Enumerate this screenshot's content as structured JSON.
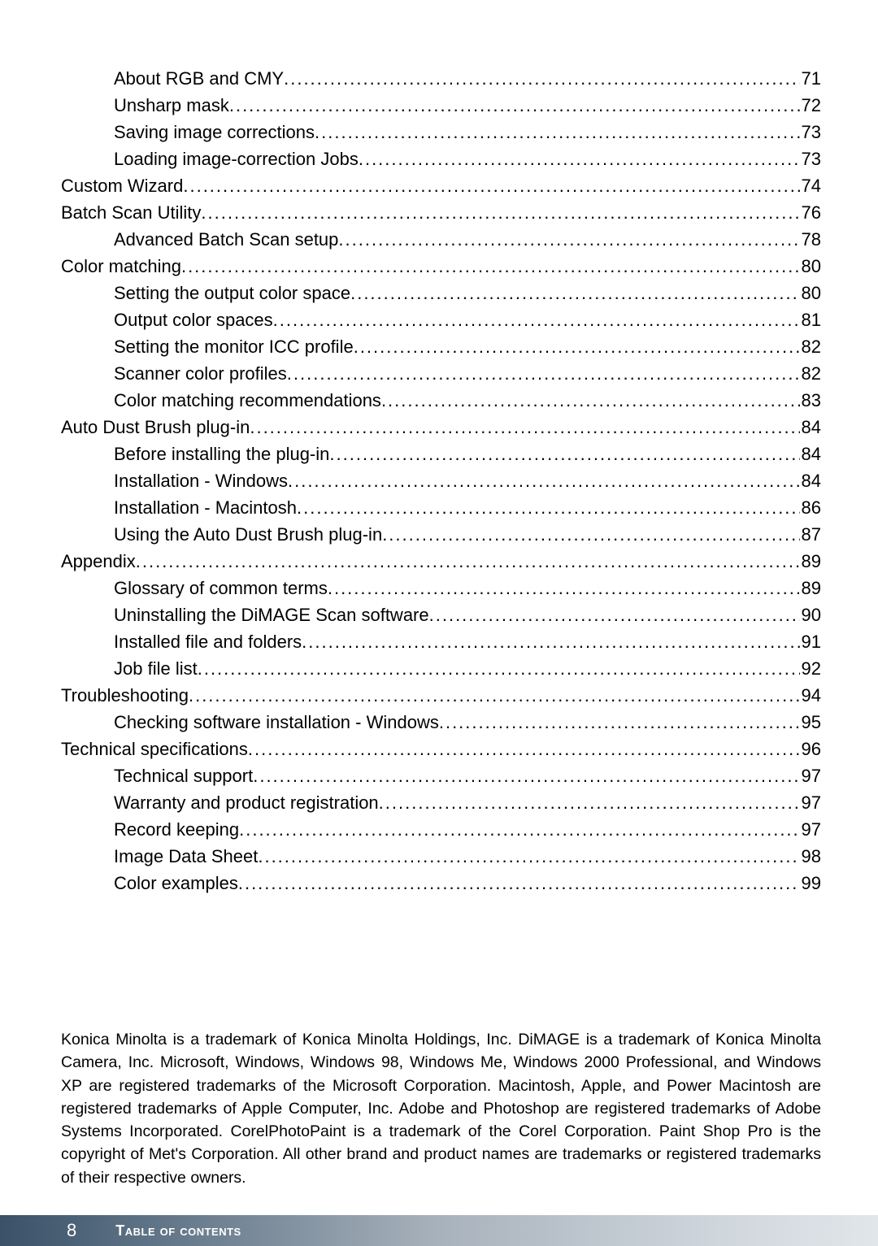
{
  "toc": [
    {
      "level": 1,
      "title": "About RGB and CMY ",
      "page": "71"
    },
    {
      "level": 1,
      "title": "Unsharp mask",
      "page": "72"
    },
    {
      "level": 1,
      "title": "Saving image corrections ",
      "page": "73"
    },
    {
      "level": 1,
      "title": "Loading image-correction Jobs",
      "page": "73"
    },
    {
      "level": 0,
      "title": "Custom Wizard ",
      "page": "74"
    },
    {
      "level": 0,
      "title": "Batch Scan Utility",
      "page": "76"
    },
    {
      "level": 1,
      "title": "Advanced Batch Scan setup",
      "page": "78"
    },
    {
      "level": 0,
      "title": "Color matching",
      "page": "80"
    },
    {
      "level": 1,
      "title": "Setting the output color space ",
      "page": "80"
    },
    {
      "level": 1,
      "title": "Output color spaces ",
      "page": "81"
    },
    {
      "level": 1,
      "title": "Setting the monitor ICC profile ",
      "page": "82"
    },
    {
      "level": 1,
      "title": "Scanner color profiles",
      "page": "82"
    },
    {
      "level": 1,
      "title": "Color matching recommendations ",
      "page": "83"
    },
    {
      "level": 0,
      "title": "Auto Dust Brush plug-in",
      "page": "84"
    },
    {
      "level": 1,
      "title": "Before installing the plug-in ",
      "page": "84"
    },
    {
      "level": 1,
      "title": "Installation - Windows ",
      "page": "84"
    },
    {
      "level": 1,
      "title": "Installation - Macintosh ",
      "page": "86"
    },
    {
      "level": 1,
      "title": "Using the Auto Dust Brush plug-in ",
      "page": "87"
    },
    {
      "level": 0,
      "title": "Appendix       ",
      "page": "89"
    },
    {
      "level": 1,
      "title": "Glossary of common terms",
      "page": "89"
    },
    {
      "level": 1,
      "title": "Uninstalling the DiMAGE Scan software ",
      "page": "90"
    },
    {
      "level": 1,
      "title": "Installed file and folders ",
      "page": "91"
    },
    {
      "level": 1,
      "title": "Job file list ",
      "page": "92"
    },
    {
      "level": 0,
      "title": "Troubleshooting ",
      "page": "94"
    },
    {
      "level": 1,
      "title": "Checking software installation - Windows ",
      "page": "95"
    },
    {
      "level": 0,
      "title": "Technical specifications ",
      "page": "96"
    },
    {
      "level": 1,
      "title": "Technical support ",
      "page": "97"
    },
    {
      "level": 1,
      "title": "Warranty and product registration ",
      "page": "97"
    },
    {
      "level": 1,
      "title": "Record keeping",
      "page": "97"
    },
    {
      "level": 1,
      "title": "Image Data Sheet",
      "page": "98"
    },
    {
      "level": 1,
      "title": "Color examples ",
      "page": "99"
    }
  ],
  "trademark_text": "Konica Minolta is a trademark of Konica Minolta Holdings, Inc. DiMAGE is a trademark of Konica Minolta Camera, Inc. Microsoft, Windows, Windows 98, Windows Me, Windows 2000 Professional, and Windows XP are registered trademarks of the Microsoft Corporation. Macintosh, Apple, and Power Macintosh are registered trademarks of Apple Computer, Inc. Adobe and Photoshop are registered trademarks of Adobe Systems Incorporated. CorelPhotoPaint is a trademark of the Corel Corporation. Paint Shop Pro is the copyright of Met's Corporation. All other brand and product names are trademarks or registered trademarks of their respective owners.",
  "footer": {
    "page_number": "8",
    "title": "Table of contents"
  }
}
